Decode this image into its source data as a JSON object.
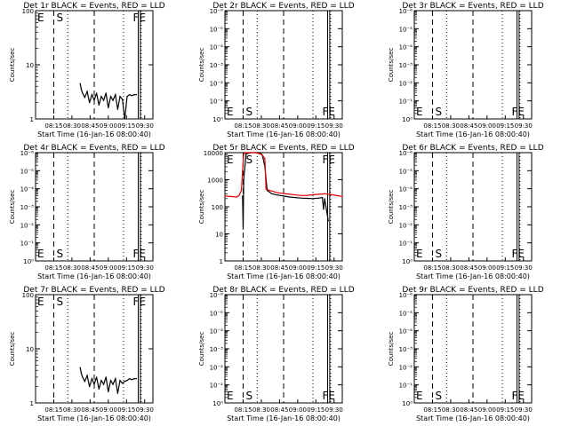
{
  "colors": {
    "events": "#000000",
    "lld": "#e00000",
    "background": "#ffffff"
  },
  "chart_data": [
    {
      "panel": "1r",
      "title": "Det 1r BLACK = Events, RED = LLD",
      "type": "line",
      "ylabel": "Counts/sec",
      "xlabel": "Start Time (16-Jan-16 08:00:40)",
      "xticks": [
        "08:15",
        "08:30",
        "08:45",
        "09:00",
        "09:15",
        "09:30"
      ],
      "yscale": "log",
      "ylim": [
        1,
        100
      ],
      "yticks": [
        "1",
        "10",
        "100"
      ],
      "xlim_minutes": [
        0,
        100
      ],
      "markers": [
        {
          "label": "E",
          "x": 0
        },
        {
          "label": "S",
          "x": 14.5
        },
        {
          "label": "FE",
          "x": 79.5
        }
      ],
      "series": [
        {
          "color": "#000000",
          "x": [
            38,
            39,
            40,
            42,
            44,
            46,
            48,
            50,
            52,
            54,
            56,
            58,
            60,
            62,
            64,
            66,
            68,
            70,
            72,
            74,
            76,
            78,
            80,
            82,
            84,
            86
          ],
          "y": [
            4.5,
            3.5,
            3.0,
            2.5,
            3.2,
            2.0,
            2.8,
            2.2,
            3.0,
            1.8,
            2.6,
            2.2,
            3.0,
            1.6,
            2.6,
            2.2,
            2.8,
            1.5,
            2.6,
            2.3,
            1.0,
            2.6,
            2.8,
            2.7,
            2.8,
            2.8
          ]
        }
      ]
    },
    {
      "panel": "2r",
      "title": "Det 2r BLACK = Events, RED = LLD",
      "type": "line",
      "ylabel": "Counts/sec",
      "xlabel": "Start Time (16-Jan-16 08:00:40)",
      "xticks": [
        "08:15",
        "08:30",
        "08:45",
        "09:00",
        "09:15",
        "09:30"
      ],
      "yscale": "log",
      "ylim": [
        1,
        1000000
      ],
      "yticks": [
        "10⁰",
        "10⁻¹",
        "10⁻²",
        "10⁻³",
        "10⁻⁴",
        "10⁻⁵",
        "10⁻⁶"
      ],
      "xlim_minutes": [
        0,
        100
      ],
      "markers": [
        {
          "label": "E",
          "x": 0
        },
        {
          "label": "S",
          "x": 14.5
        },
        {
          "label": "FE",
          "x": 79.5
        }
      ],
      "series": []
    },
    {
      "panel": "3r",
      "title": "Det 3r BLACK = Events, RED = LLD",
      "type": "line",
      "ylabel": "Counts/sec",
      "xlabel": "Start Time (16-Jan-16 08:00:40)",
      "xticks": [
        "08:15",
        "08:30",
        "08:45",
        "09:00",
        "09:15",
        "09:30"
      ],
      "yscale": "log",
      "ylim": [
        1,
        1000000
      ],
      "yticks": [
        "10⁰",
        "10⁻¹",
        "10⁻²",
        "10⁻³",
        "10⁻⁴",
        "10⁻⁵",
        "10⁻⁶"
      ],
      "xlim_minutes": [
        0,
        100
      ],
      "markers": [
        {
          "label": "E",
          "x": 0
        },
        {
          "label": "S",
          "x": 14.5
        },
        {
          "label": "FE",
          "x": 79.5
        }
      ],
      "series": []
    },
    {
      "panel": "4r",
      "title": "Det 4r BLACK = Events, RED = LLD",
      "type": "line",
      "ylabel": "Counts/sec",
      "xlabel": "Start Time (16-Jan-16 08:00:40)",
      "xticks": [
        "08:15",
        "08:30",
        "08:45",
        "09:00",
        "09:15",
        "09:30"
      ],
      "yscale": "log",
      "ylim": [
        1,
        1000000
      ],
      "yticks": [
        "10⁰",
        "10⁻¹",
        "10⁻²",
        "10⁻³",
        "10⁻⁴",
        "10⁻⁵",
        "10⁻⁶"
      ],
      "xlim_minutes": [
        0,
        100
      ],
      "markers": [
        {
          "label": "E",
          "x": 0
        },
        {
          "label": "S",
          "x": 14.5
        },
        {
          "label": "FE",
          "x": 79.5
        }
      ],
      "series": []
    },
    {
      "panel": "5r",
      "title": "Det 5r BLACK = Events, RED = LLD",
      "type": "line",
      "ylabel": "Counts/sec",
      "xlabel": "Start Time (16-Jan-16 08:00:40)",
      "xticks": [
        "08:15",
        "08:30",
        "08:45",
        "09:00",
        "09:15",
        "09:30"
      ],
      "yscale": "log",
      "ylim": [
        1,
        10000
      ],
      "yticks": [
        "1",
        "10",
        "100",
        "1000",
        "10000"
      ],
      "xlim_minutes": [
        0,
        100
      ],
      "markers": [
        {
          "label": "E",
          "x": 0
        },
        {
          "label": "S",
          "x": 14.5
        },
        {
          "label": "FE",
          "x": 79.5
        }
      ],
      "series": [
        {
          "color": "#000000",
          "x": [
            15,
            15.5,
            16,
            18,
            22,
            26,
            30,
            32,
            34,
            36,
            40,
            45,
            50,
            55,
            60,
            65,
            70,
            75,
            80,
            83,
            84,
            85,
            88
          ],
          "y": [
            250,
            15,
            1000,
            9000,
            10000,
            10000,
            10000,
            8000,
            3000,
            400,
            300,
            270,
            250,
            230,
            220,
            210,
            205,
            200,
            210,
            220,
            80,
            200,
            30
          ]
        },
        {
          "color": "#e00000",
          "x": [
            0,
            5,
            10,
            12,
            14,
            15,
            16,
            18,
            22,
            26,
            28,
            30,
            32,
            34,
            35,
            38,
            45,
            55,
            65,
            70,
            75,
            80,
            85,
            90,
            100
          ],
          "y": [
            250,
            240,
            230,
            260,
            400,
            2000,
            9000,
            10000,
            10000,
            10000,
            9500,
            9000,
            8000,
            6000,
            450,
            400,
            330,
            290,
            260,
            265,
            280,
            290,
            300,
            285,
            240
          ]
        }
      ]
    },
    {
      "panel": "6r",
      "title": "Det 6r BLACK = Events, RED = LLD",
      "type": "line",
      "ylabel": "Counts/sec",
      "xlabel": "Start Time (16-Jan-16 08:00:40)",
      "xticks": [
        "08:15",
        "08:30",
        "08:45",
        "09:00",
        "09:15",
        "09:30"
      ],
      "yscale": "log",
      "ylim": [
        1,
        1000000
      ],
      "yticks": [
        "10⁰",
        "10⁻¹",
        "10⁻²",
        "10⁻³",
        "10⁻⁴",
        "10⁻⁵",
        "10⁻⁶"
      ],
      "xlim_minutes": [
        0,
        100
      ],
      "markers": [
        {
          "label": "E",
          "x": 0
        },
        {
          "label": "S",
          "x": 14.5
        },
        {
          "label": "FE",
          "x": 79.5
        }
      ],
      "series": []
    },
    {
      "panel": "7r",
      "title": "Det 7r BLACK = Events, RED = LLD",
      "type": "line",
      "ylabel": "Counts/sec",
      "xlabel": "Start Time (16-Jan-16 08:00:40)",
      "xticks": [
        "08:15",
        "08:30",
        "08:45",
        "09:00",
        "09:15",
        "09:30"
      ],
      "yscale": "log",
      "ylim": [
        1,
        100
      ],
      "yticks": [
        "1",
        "10",
        "100"
      ],
      "xlim_minutes": [
        0,
        100
      ],
      "markers": [
        {
          "label": "E",
          "x": 0
        },
        {
          "label": "S",
          "x": 14.5
        },
        {
          "label": "FE",
          "x": 79.5
        }
      ],
      "series": [
        {
          "color": "#000000",
          "x": [
            38,
            39,
            40,
            42,
            44,
            46,
            48,
            50,
            52,
            54,
            56,
            58,
            60,
            62,
            64,
            66,
            68,
            70,
            72,
            74,
            76,
            78,
            80,
            82,
            84,
            86
          ],
          "y": [
            4.5,
            3.5,
            3.0,
            2.5,
            3.2,
            2.0,
            2.8,
            2.2,
            3.0,
            1.8,
            2.6,
            2.2,
            3.0,
            1.6,
            2.6,
            2.2,
            2.8,
            1.5,
            2.6,
            2.3,
            2.5,
            2.6,
            2.8,
            2.7,
            2.8,
            2.8
          ]
        }
      ]
    },
    {
      "panel": "8r",
      "title": "Det 8r BLACK = Events, RED = LLD",
      "type": "line",
      "ylabel": "Counts/sec",
      "xlabel": "Start Time (16-Jan-16 08:00:40)",
      "xticks": [
        "08:15",
        "08:30",
        "08:45",
        "09:00",
        "09:15",
        "09:30"
      ],
      "yscale": "log",
      "ylim": [
        1,
        1000000
      ],
      "yticks": [
        "10⁰",
        "10⁻¹",
        "10⁻²",
        "10⁻³",
        "10⁻⁴",
        "10⁻⁵",
        "10⁻⁶"
      ],
      "xlim_minutes": [
        0,
        100
      ],
      "markers": [
        {
          "label": "E",
          "x": 0
        },
        {
          "label": "S",
          "x": 14.5
        },
        {
          "label": "FE",
          "x": 79.5
        }
      ],
      "series": []
    },
    {
      "panel": "9r",
      "title": "Det 9r BLACK = Events, RED = LLD",
      "type": "line",
      "ylabel": "Counts/sec",
      "xlabel": "Start Time (16-Jan-16 08:00:40)",
      "xticks": [
        "08:15",
        "08:30",
        "08:45",
        "09:00",
        "09:15",
        "09:30"
      ],
      "yscale": "log",
      "ylim": [
        1,
        1000000
      ],
      "yticks": [
        "10⁰",
        "10⁻¹",
        "10⁻²",
        "10⁻³",
        "10⁻⁴",
        "10⁻⁵",
        "10⁻⁶"
      ],
      "xlim_minutes": [
        0,
        100
      ],
      "markers": [
        {
          "label": "E",
          "x": 0
        },
        {
          "label": "S",
          "x": 14.5
        },
        {
          "label": "FE",
          "x": 79.5
        }
      ],
      "series": []
    }
  ]
}
